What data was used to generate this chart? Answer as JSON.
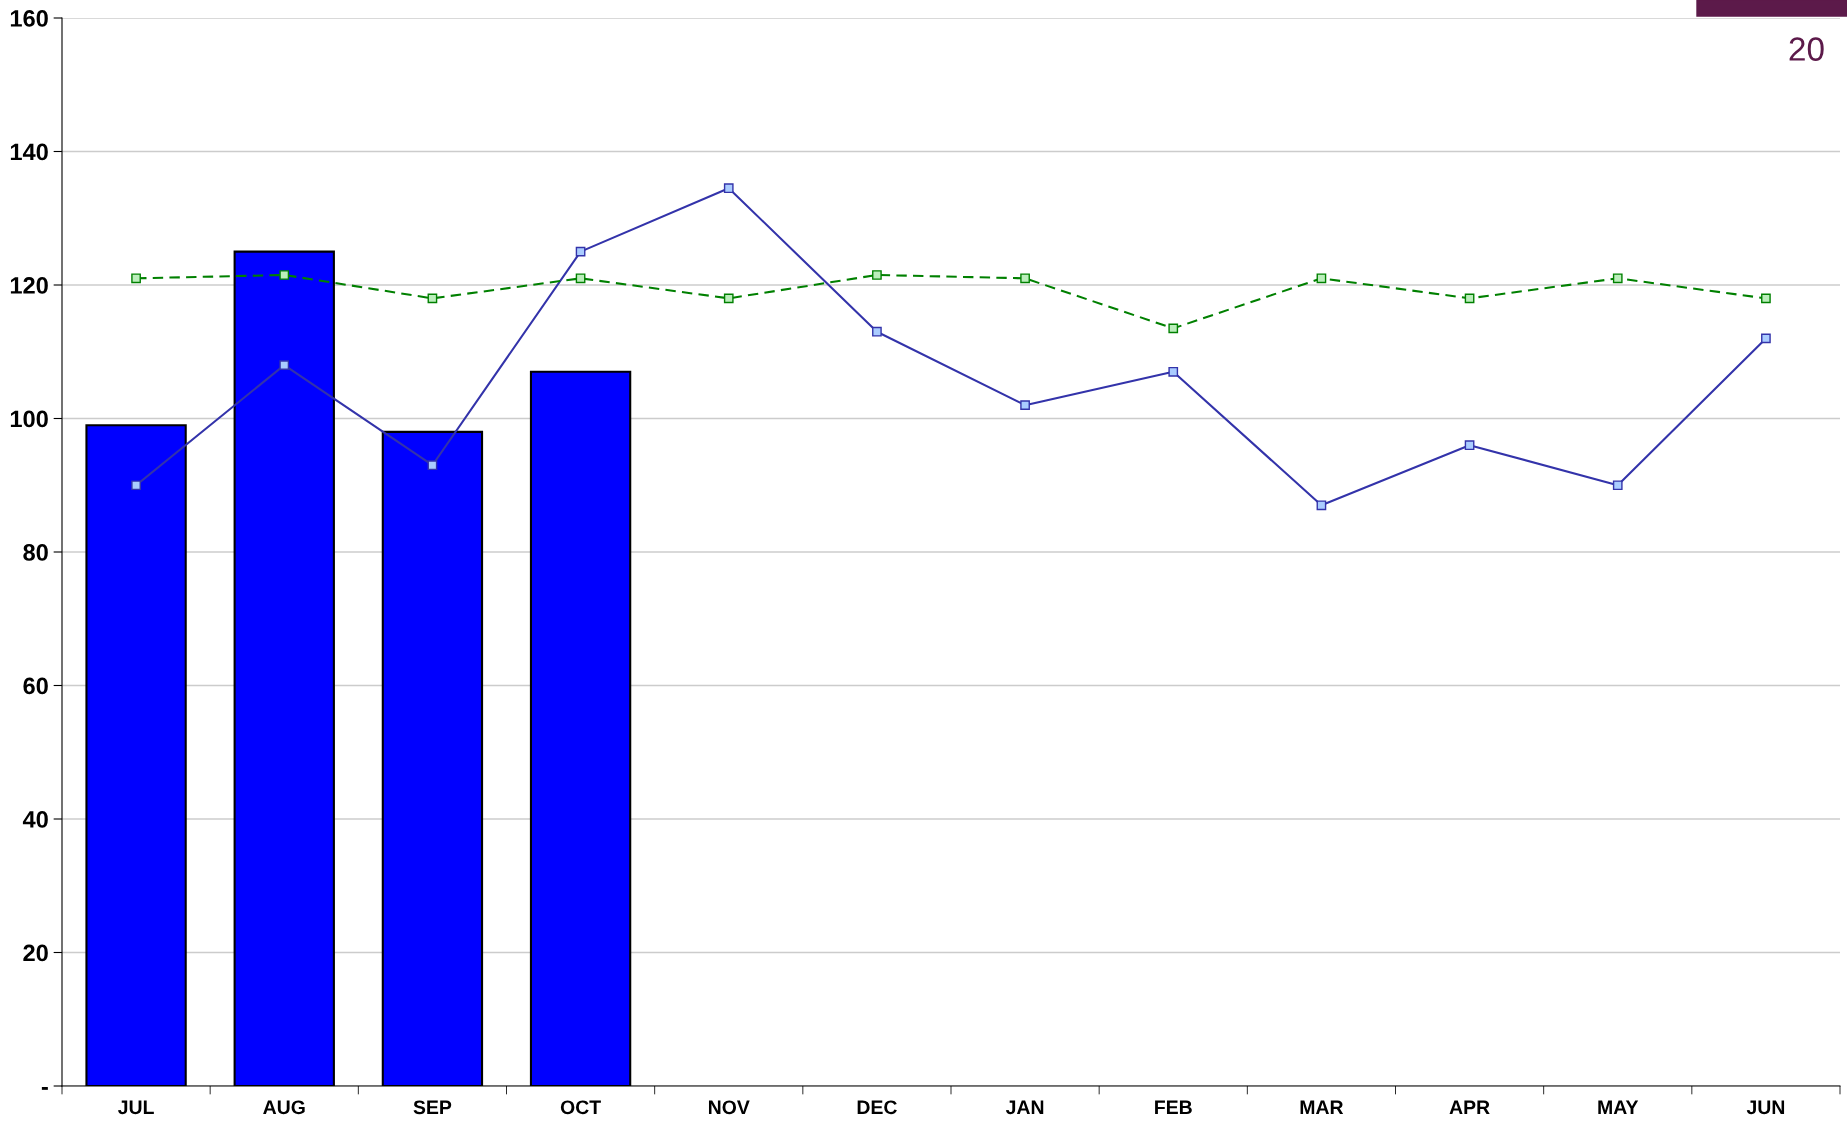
{
  "chart_data": {
    "type": "bar",
    "categories": [
      "JUL",
      "AUG",
      "SEP",
      "OCT",
      "NOV",
      "DEC",
      "JAN",
      "FEB",
      "MAR",
      "APR",
      "MAY",
      "JUN"
    ],
    "series": [
      {
        "color": "#0000ff",
        "values": [
          99,
          125,
          98,
          107,
          null,
          null,
          null,
          null,
          null,
          null,
          null,
          null
        ]
      },
      {
        "type": "line",
        "color": "#3333aa",
        "marker": "square",
        "line_style": "solid",
        "values": [
          90,
          108,
          93,
          125,
          134.5,
          113,
          102,
          107,
          87,
          96,
          90,
          112
        ]
      },
      {
        "type": "line",
        "color": "#008000",
        "marker": "square",
        "line_style": "dashed",
        "values": [
          121,
          121.5,
          118,
          121,
          118,
          121.5,
          121,
          113.5,
          121,
          118,
          121,
          118
        ]
      }
    ],
    "ylim": [
      0,
      160
    ],
    "yticks": [
      {
        "value": 0,
        "label": "-"
      },
      20,
      40,
      60,
      80,
      100,
      120,
      140,
      160
    ],
    "grid": "y",
    "annotations": [
      "20"
    ]
  }
}
